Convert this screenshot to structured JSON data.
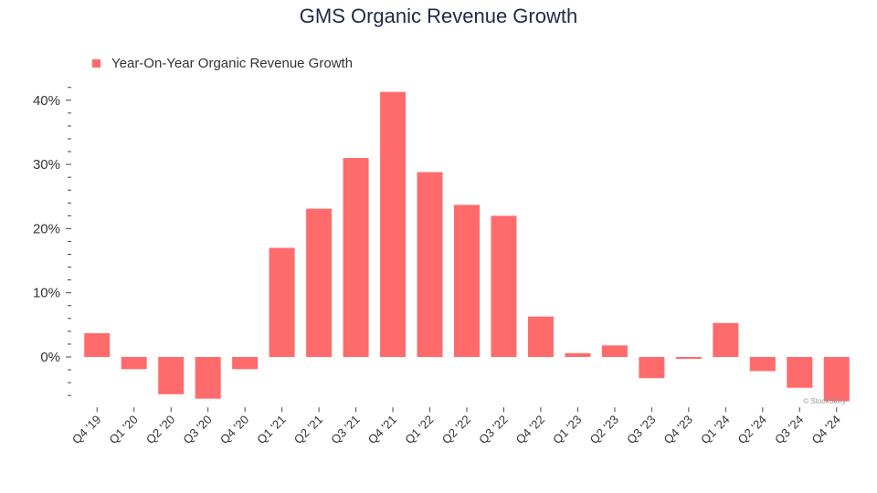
{
  "chart_data": {
    "type": "bar",
    "title": "GMS Organic Revenue Growth",
    "xlabel": "",
    "ylabel": "",
    "categories": [
      "Q4 '19",
      "Q1 '20",
      "Q2 '20",
      "Q3 '20",
      "Q4 '20",
      "Q1 '21",
      "Q2 '21",
      "Q3 '21",
      "Q4 '21",
      "Q1 '22",
      "Q2 '22",
      "Q3 '22",
      "Q4 '22",
      "Q1 '23",
      "Q2 '23",
      "Q3 '23",
      "Q4 '23",
      "Q1 '24",
      "Q2 '24",
      "Q3 '24",
      "Q4 '24"
    ],
    "series": [
      {
        "name": "Year-On-Year Organic Revenue Growth",
        "values": [
          3.7,
          -1.9,
          -5.8,
          -6.5,
          -1.9,
          17.0,
          23.1,
          31.0,
          41.3,
          28.8,
          23.7,
          22.0,
          6.3,
          0.6,
          1.8,
          -3.3,
          -0.3,
          5.3,
          -2.2,
          -4.8,
          -6.9
        ],
        "color": "#ff6b6b"
      }
    ],
    "ylim": [
      -7,
      42
    ],
    "yticks": [
      0,
      10,
      20,
      30,
      40
    ],
    "ytick_labels": [
      "0%",
      "10%",
      "20%",
      "30%",
      "40%"
    ],
    "grid": false,
    "legend_position": "top-left",
    "watermark": "© StockStory"
  }
}
